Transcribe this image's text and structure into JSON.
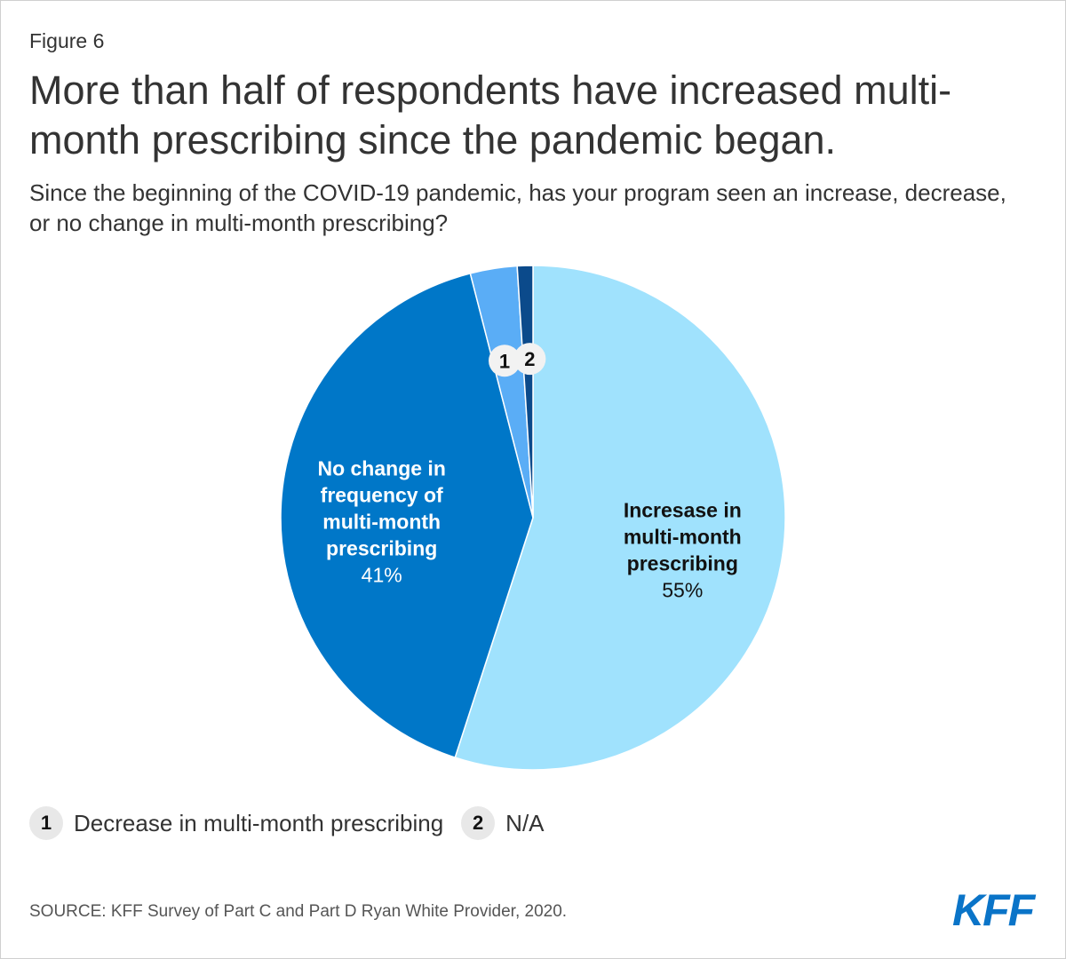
{
  "figure_label": "Figure 6",
  "title": "More than half of respondents have increased multi-month prescribing since the pandemic began.",
  "subtitle": "Since the beginning of the COVID-19 pandemic, has your program seen an increase, decrease, or no change in multi-month prescribing?",
  "chart_data": {
    "type": "pie",
    "title": "More than half of respondents have increased multi-month prescribing since the pandemic began.",
    "slices": [
      {
        "key": "increase",
        "label_lines": [
          "Incresase in",
          "multi-month",
          "prescribing"
        ],
        "value": 55,
        "display": "55%",
        "color": "#a0e2fd",
        "label_color": "#111111"
      },
      {
        "key": "no_change",
        "label_lines": [
          "No change in",
          "frequency of",
          "multi-month",
          "prescribing"
        ],
        "value": 41,
        "display": "41%",
        "color": "#0077c8",
        "label_color": "#ffffff"
      },
      {
        "key": "decrease",
        "marker": "1",
        "value": 3,
        "color": "#5aadf6"
      },
      {
        "key": "na",
        "marker": "2",
        "value": 1,
        "color": "#0b4a8b"
      }
    ]
  },
  "legend": [
    {
      "marker": "1",
      "label": "Decrease in multi-month prescribing"
    },
    {
      "marker": "2",
      "label": "N/A"
    }
  ],
  "source": "SOURCE: KFF Survey of Part C and Part D Ryan White Provider, 2020.",
  "logo": "KFF"
}
